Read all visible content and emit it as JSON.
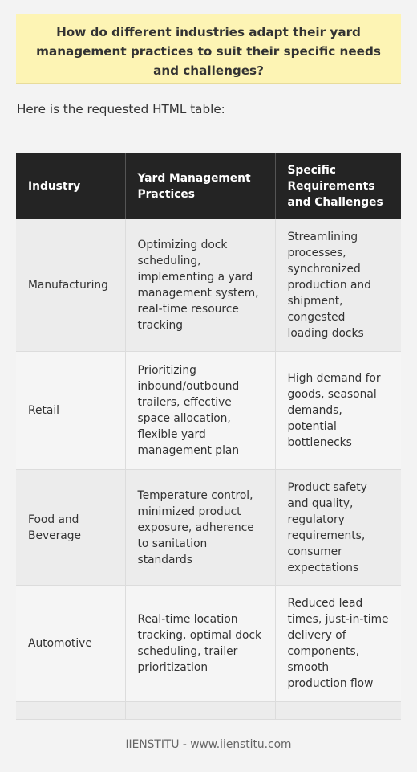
{
  "question": "How do different industries adapt their yard management practices to suit their specific needs and challenges?",
  "intro": "Here is the requested HTML table:",
  "table": {
    "headers": [
      "Industry",
      "Yard Management Practices",
      "Specific Requirements and Challenges"
    ],
    "rows": [
      {
        "industry": "Manufacturing",
        "practices": "Optimizing dock scheduling, implementing a yard management system, real-time resource tracking",
        "challenges": "Streamlining processes, synchronized production and shipment, congested loading docks"
      },
      {
        "industry": "Retail",
        "practices": "Prioritizing inbound/outbound trailers, effective space allocation, flexible yard management plan",
        "challenges": "High demand for goods, seasonal demands, potential bottlenecks"
      },
      {
        "industry": "Food and Beverage",
        "practices": "Temperature control, minimized product exposure, adherence to sanitation standards",
        "challenges": "Product safety and quality, regulatory requirements, consumer expectations"
      },
      {
        "industry": "Automotive",
        "practices": "Real-time location tracking, optimal dock scheduling, trailer prioritization",
        "challenges": "Reduced lead times, just-in-time delivery of components, smooth production flow"
      }
    ]
  },
  "footer": "IIENSTITU - www.iienstitu.com"
}
